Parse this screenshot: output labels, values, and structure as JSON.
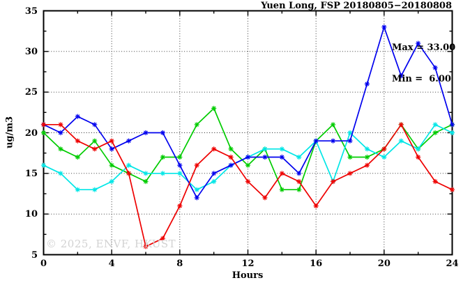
{
  "title": "Yuen Long, FSP 20180805−20180808",
  "watermark": "© 2025, ENVF, HKUST",
  "annotation": {
    "max_label": "Max = 33.00",
    "min_label": "Min =  6.00"
  },
  "chart_data": {
    "type": "line",
    "title": "Yuen Long, FSP 20180805−20180808",
    "xlabel": "Hours",
    "ylabel": "ug/m3",
    "xlim": [
      0,
      24
    ],
    "ylim": [
      5,
      35
    ],
    "x_major_ticks": [
      0,
      4,
      8,
      12,
      16,
      20,
      24
    ],
    "x_minor_step": 2,
    "y_major_ticks": [
      5,
      10,
      15,
      20,
      25,
      30,
      35
    ],
    "y_minor_step": 2.5,
    "grid_x": [
      4,
      8,
      12,
      16,
      20
    ],
    "grid_y": [
      10,
      15,
      20,
      25,
      30
    ],
    "grid_style": "dotted",
    "legend_position": "none",
    "marker": "asterisk",
    "stats": {
      "max": 33.0,
      "min": 6.0
    },
    "x": [
      0,
      1,
      2,
      3,
      4,
      5,
      6,
      7,
      8,
      9,
      10,
      11,
      12,
      13,
      14,
      15,
      16,
      17,
      18,
      19,
      20,
      21,
      22,
      23,
      24
    ],
    "series": [
      {
        "name": "green",
        "color": "#00cc00",
        "values": [
          20,
          18,
          17,
          19,
          16,
          15,
          14,
          17,
          17,
          21,
          23,
          18,
          16,
          18,
          13,
          13,
          19,
          21,
          17,
          17,
          18,
          21,
          18,
          20,
          21
        ]
      },
      {
        "name": "cyan",
        "color": "#00e6e6",
        "values": [
          16,
          15,
          13,
          13,
          14,
          16,
          15,
          15,
          15,
          13,
          14,
          16,
          17,
          18,
          18,
          17,
          19,
          14,
          20,
          18,
          17,
          19,
          18,
          21,
          20
        ]
      },
      {
        "name": "blue",
        "color": "#0000ee",
        "values": [
          21,
          20,
          22,
          21,
          18,
          19,
          20,
          20,
          16,
          12,
          15,
          16,
          17,
          17,
          17,
          15,
          19,
          19,
          19,
          26,
          33,
          27,
          31,
          28,
          21
        ]
      },
      {
        "name": "red",
        "color": "#ee0000",
        "values": [
          21,
          21,
          19,
          18,
          19,
          15,
          6,
          7,
          11,
          16,
          18,
          17,
          14,
          12,
          15,
          14,
          11,
          14,
          15,
          16,
          18,
          21,
          17,
          14,
          13
        ]
      }
    ]
  }
}
